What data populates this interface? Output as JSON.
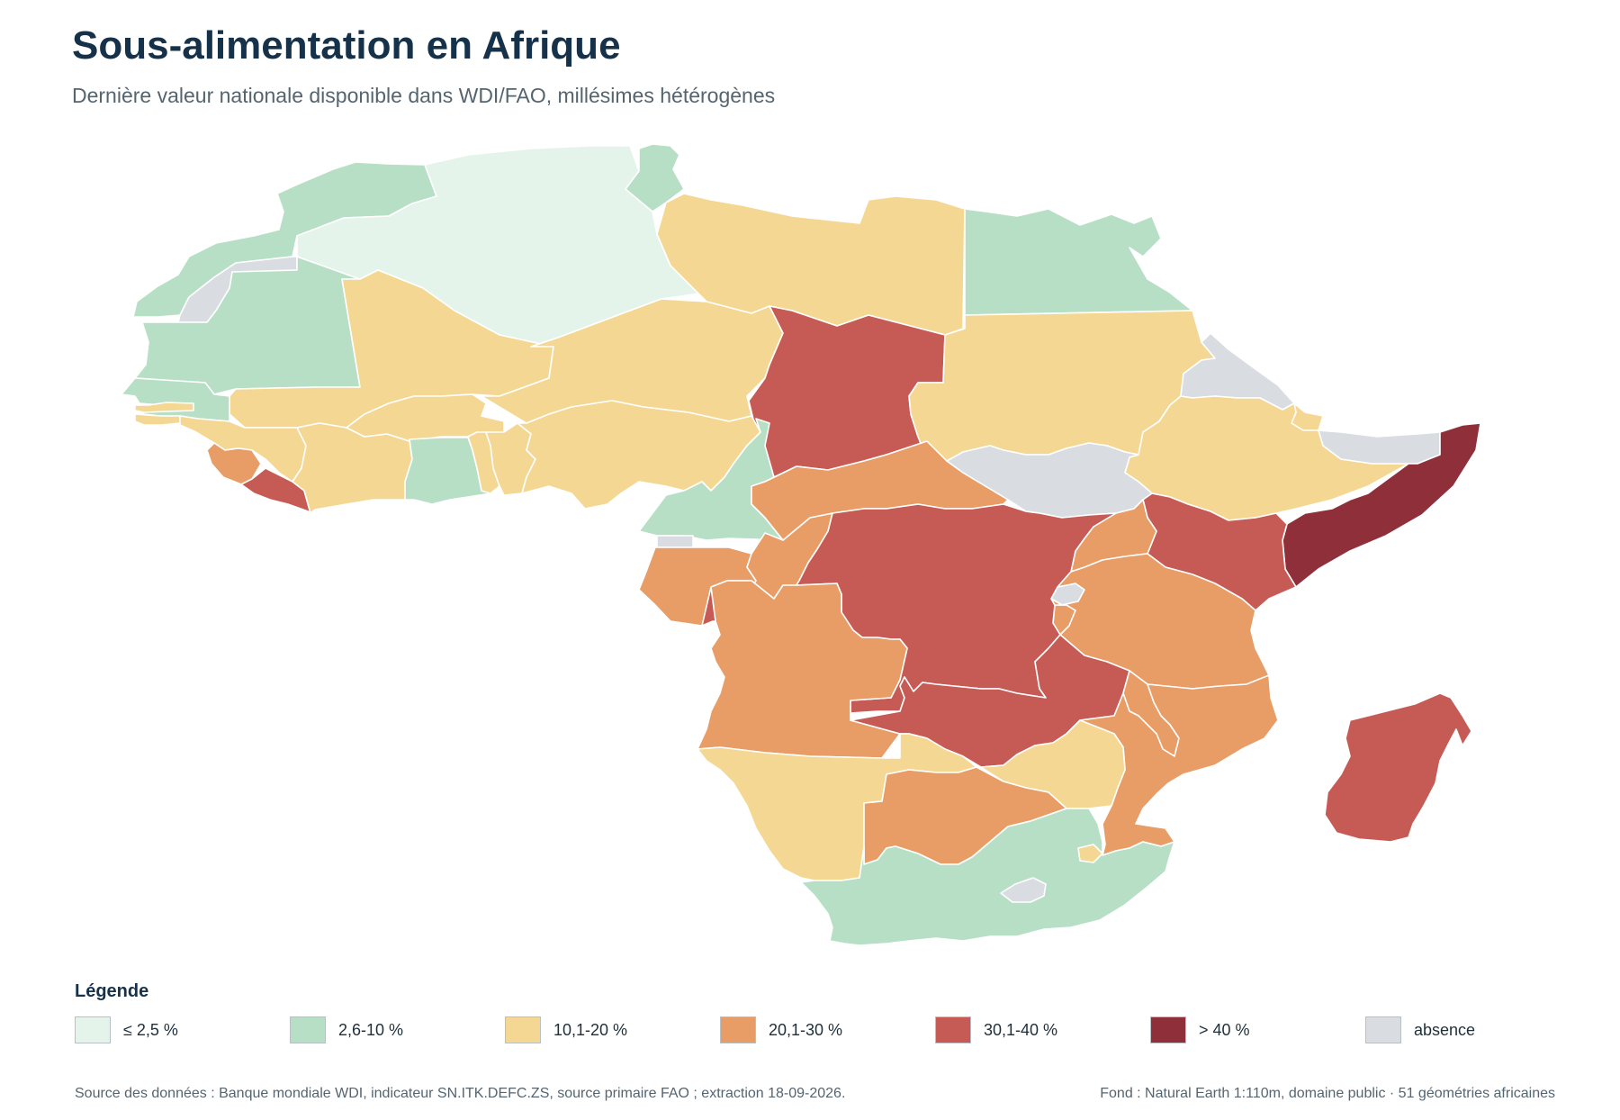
{
  "header": {
    "title": "Sous-alimentation en Afrique",
    "subtitle": "Dernière valeur nationale disponible dans WDI/FAO, millésimes hétérogènes"
  },
  "legend": {
    "title": "Légende",
    "items": [
      {
        "label": "≤ 2,5 %",
        "color": "#e5f4eb"
      },
      {
        "label": "2,6-10 %",
        "color": "#b7dfc6"
      },
      {
        "label": "10,1-20 %",
        "color": "#f4d793"
      },
      {
        "label": "20,1-30 %",
        "color": "#e89c66"
      },
      {
        "label": "30,1-40 %",
        "color": "#c65b55"
      },
      {
        "label": "> 40 %",
        "color": "#8f2f3a"
      },
      {
        "label": "absence",
        "color": "#d9dde2"
      }
    ]
  },
  "footer": {
    "source": "Source des données : Banque mondiale WDI, indicateur SN.ITK.DEFC.ZS, source primaire FAO ; extraction 18-09-2026.",
    "basemap": "Fond : Natural Earth 1:110m, domaine public · 51 géométries africaines"
  },
  "map": {
    "colors": {
      "c1": "#e5f4eb",
      "c2": "#b7dfc6",
      "c3": "#f4d793",
      "c4": "#e89c66",
      "c5": "#c65b55",
      "c6": "#8f2f3a",
      "na": "#d9dde2"
    },
    "regions": [
      {
        "id": "morocco",
        "cls": "c2"
      },
      {
        "id": "western-sahara",
        "cls": "na"
      },
      {
        "id": "mauritania",
        "cls": "c2"
      },
      {
        "id": "algeria",
        "cls": "c1"
      },
      {
        "id": "tunisia",
        "cls": "c2"
      },
      {
        "id": "libya",
        "cls": "c3"
      },
      {
        "id": "egypt",
        "cls": "c2"
      },
      {
        "id": "mali",
        "cls": "c3"
      },
      {
        "id": "niger",
        "cls": "c3"
      },
      {
        "id": "chad",
        "cls": "c5"
      },
      {
        "id": "sudan",
        "cls": "c3"
      },
      {
        "id": "eritrea",
        "cls": "na"
      },
      {
        "id": "djibouti",
        "cls": "c3"
      },
      {
        "id": "somaliland",
        "cls": "na"
      },
      {
        "id": "senegal",
        "cls": "c2"
      },
      {
        "id": "gambia",
        "cls": "c3"
      },
      {
        "id": "guinea-bissau",
        "cls": "c3"
      },
      {
        "id": "guinea",
        "cls": "c3"
      },
      {
        "id": "sierra-leone",
        "cls": "c4"
      },
      {
        "id": "liberia",
        "cls": "c5"
      },
      {
        "id": "cote-divoire",
        "cls": "c3"
      },
      {
        "id": "burkina-faso",
        "cls": "c3"
      },
      {
        "id": "ghana",
        "cls": "c2"
      },
      {
        "id": "togo",
        "cls": "c3"
      },
      {
        "id": "benin",
        "cls": "c3"
      },
      {
        "id": "nigeria",
        "cls": "c3"
      },
      {
        "id": "cameroon",
        "cls": "c2"
      },
      {
        "id": "equatorial-guinea",
        "cls": "na"
      },
      {
        "id": "gabon",
        "cls": "c4"
      },
      {
        "id": "congo",
        "cls": "c4"
      },
      {
        "id": "central-african-republic",
        "cls": "c4"
      },
      {
        "id": "south-sudan",
        "cls": "na"
      },
      {
        "id": "ethiopia",
        "cls": "c3"
      },
      {
        "id": "somalia",
        "cls": "c6"
      },
      {
        "id": "kenya",
        "cls": "c5"
      },
      {
        "id": "uganda",
        "cls": "c4"
      },
      {
        "id": "rwanda",
        "cls": "na"
      },
      {
        "id": "burundi",
        "cls": "c4"
      },
      {
        "id": "dr-congo",
        "cls": "c5"
      },
      {
        "id": "tanzania",
        "cls": "c4"
      },
      {
        "id": "angola",
        "cls": "c4"
      },
      {
        "id": "zambia",
        "cls": "c5"
      },
      {
        "id": "malawi",
        "cls": "c4"
      },
      {
        "id": "mozambique",
        "cls": "c4"
      },
      {
        "id": "zimbabwe",
        "cls": "c3"
      },
      {
        "id": "namibia",
        "cls": "c3"
      },
      {
        "id": "botswana",
        "cls": "c4"
      },
      {
        "id": "south-africa",
        "cls": "c2"
      },
      {
        "id": "lesotho",
        "cls": "na"
      },
      {
        "id": "eswatini",
        "cls": "c3"
      },
      {
        "id": "madagascar",
        "cls": "c5"
      }
    ]
  }
}
